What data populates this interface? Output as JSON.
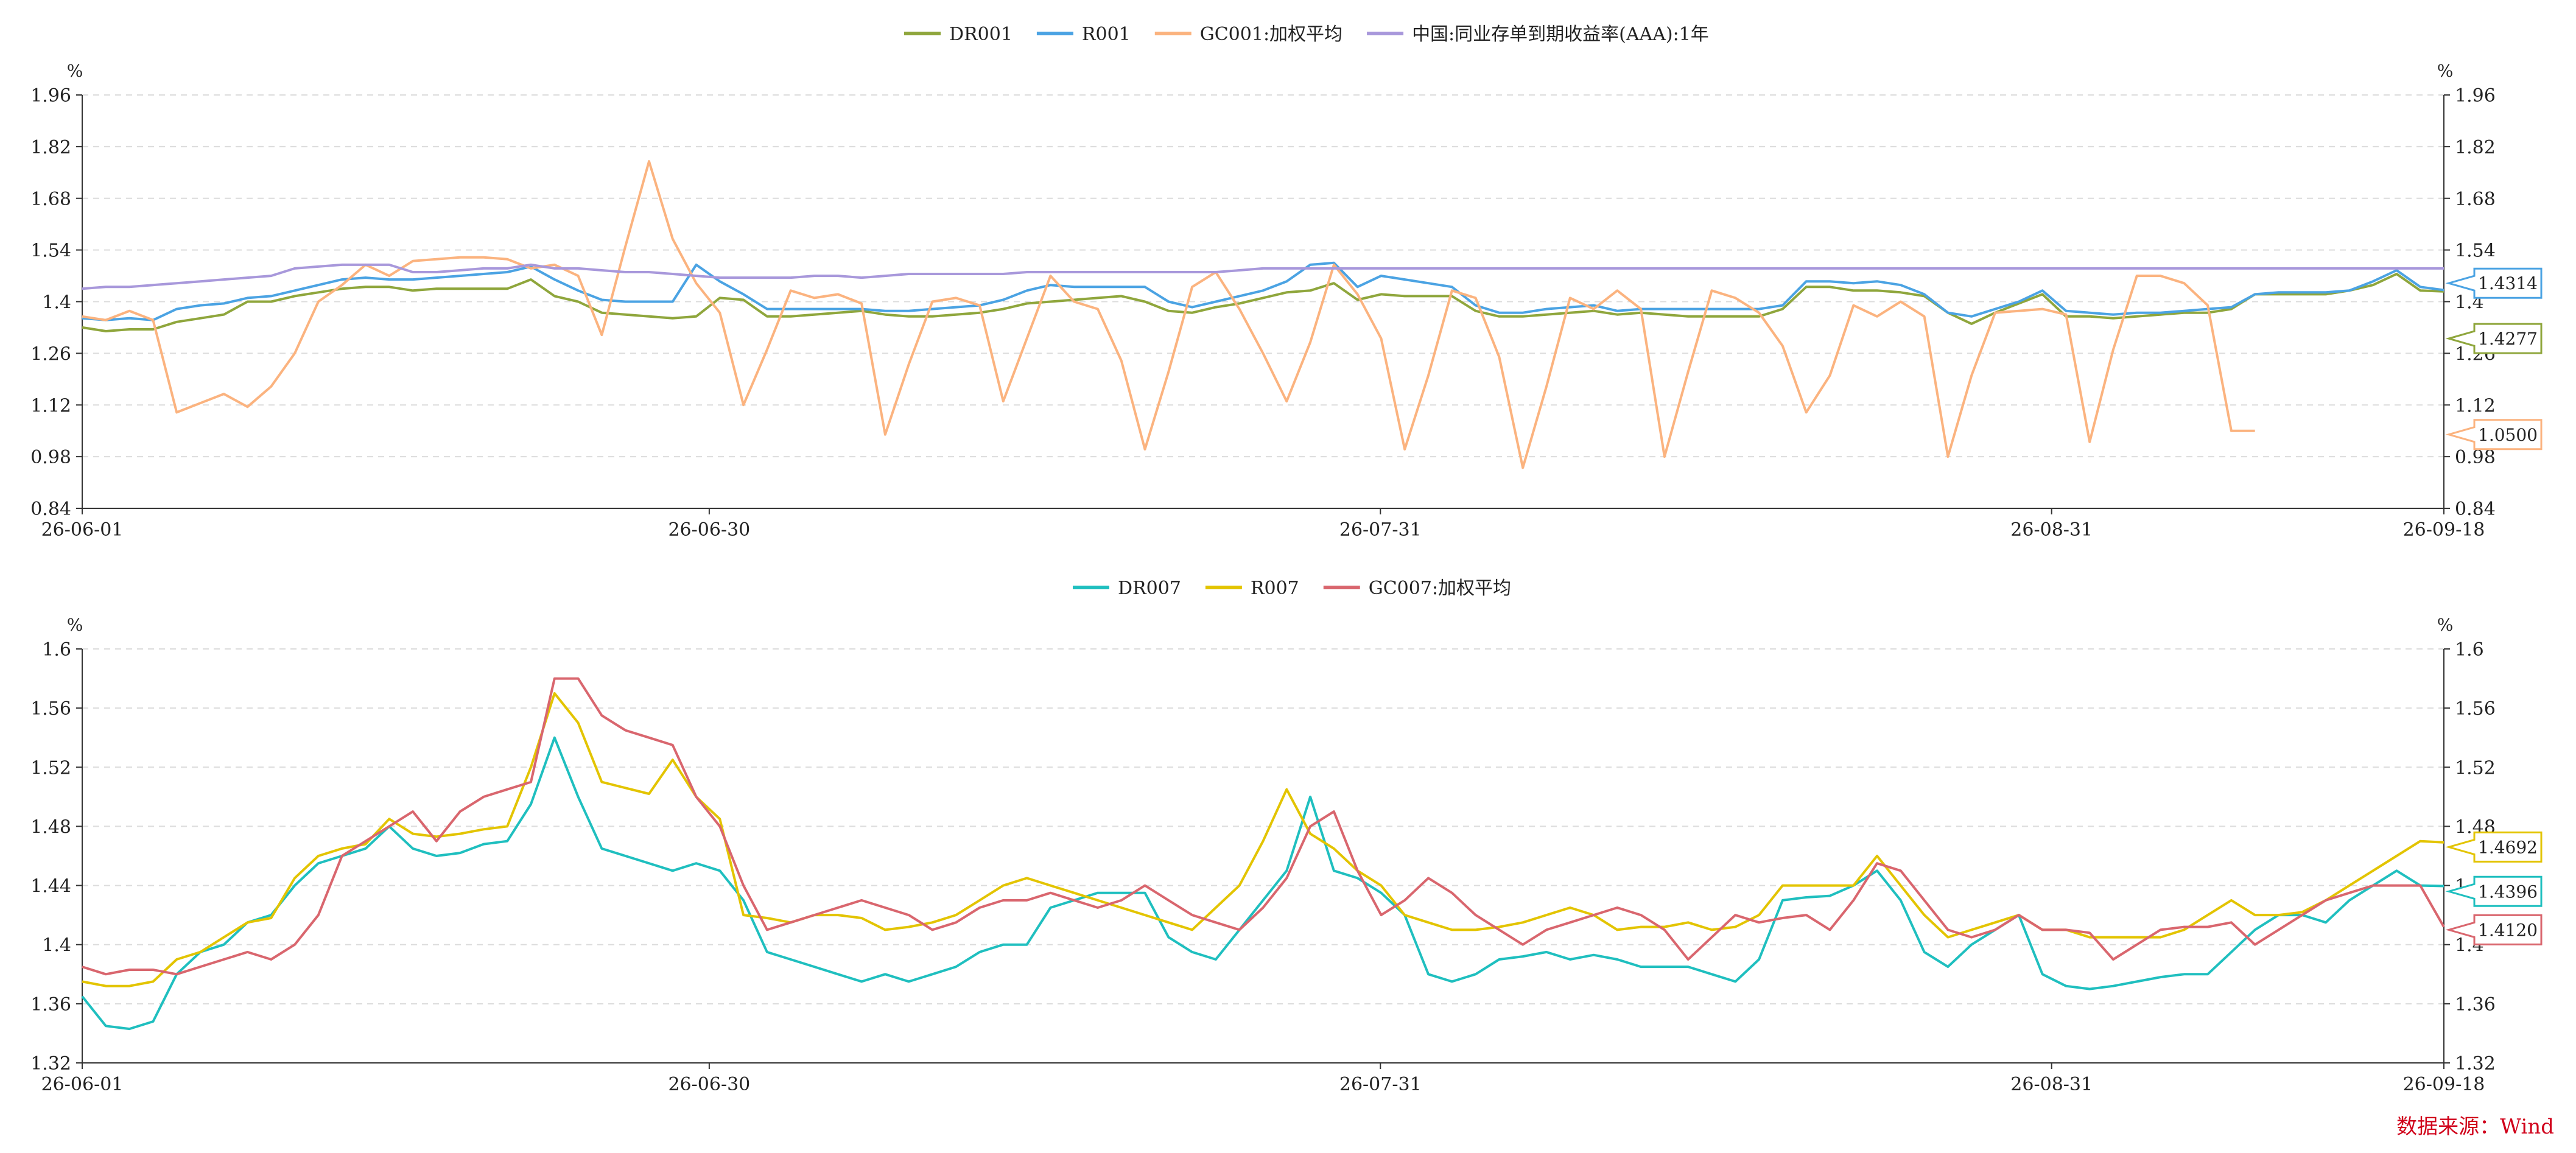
{
  "source": "数据来源：Wind",
  "charts": [
    {
      "type": "line",
      "y_unit_left": "%",
      "y_unit_right": "%",
      "ylim": [
        0.84,
        1.96
      ],
      "yticks": [
        "0.84",
        "0.98",
        "1.12",
        "1.26",
        "1.4",
        "1.54",
        "1.68",
        "1.82",
        "1.96"
      ],
      "xticks": [
        "26-06-01",
        "26-06-30",
        "26-07-31",
        "26-08-31",
        "26-09-18"
      ],
      "grid": true,
      "legend": "top-center",
      "series": [
        {
          "name": "DR001",
          "color": "#8fa63c",
          "end_label": "1.4277",
          "values": [
            1.33,
            1.32,
            1.325,
            1.325,
            1.345,
            1.355,
            1.365,
            1.4,
            1.4,
            1.415,
            1.425,
            1.435,
            1.44,
            1.44,
            1.43,
            1.435,
            1.435,
            1.435,
            1.435,
            1.46,
            1.415,
            1.4,
            1.37,
            1.365,
            1.36,
            1.355,
            1.36,
            1.41,
            1.405,
            1.36,
            1.36,
            1.365,
            1.37,
            1.375,
            1.365,
            1.36,
            1.36,
            1.365,
            1.37,
            1.38,
            1.395,
            1.4,
            1.405,
            1.41,
            1.415,
            1.4,
            1.375,
            1.37,
            1.385,
            1.395,
            1.41,
            1.425,
            1.43,
            1.45,
            1.405,
            1.42,
            1.415,
            1.415,
            1.415,
            1.375,
            1.36,
            1.36,
            1.365,
            1.37,
            1.375,
            1.365,
            1.37,
            1.365,
            1.36,
            1.36,
            1.36,
            1.36,
            1.38,
            1.44,
            1.44,
            1.43,
            1.43,
            1.425,
            1.415,
            1.37,
            1.34,
            1.37,
            1.395,
            1.42,
            1.36,
            1.36,
            1.355,
            1.36,
            1.365,
            1.37,
            1.37,
            1.38,
            1.42,
            1.42,
            1.42,
            1.42,
            1.43,
            1.445,
            1.475,
            1.43,
            1.4277
          ]
        },
        {
          "name": "R001",
          "color": "#4ba3e3",
          "end_label": "1.4314",
          "values": [
            1.355,
            1.35,
            1.355,
            1.35,
            1.38,
            1.39,
            1.395,
            1.41,
            1.415,
            1.43,
            1.445,
            1.46,
            1.465,
            1.46,
            1.46,
            1.465,
            1.47,
            1.475,
            1.48,
            1.495,
            1.46,
            1.43,
            1.405,
            1.4,
            1.4,
            1.4,
            1.5,
            1.455,
            1.42,
            1.38,
            1.38,
            1.38,
            1.38,
            1.38,
            1.375,
            1.375,
            1.38,
            1.385,
            1.39,
            1.405,
            1.43,
            1.445,
            1.44,
            1.44,
            1.44,
            1.44,
            1.4,
            1.385,
            1.4,
            1.415,
            1.43,
            1.455,
            1.5,
            1.505,
            1.44,
            1.47,
            1.46,
            1.45,
            1.44,
            1.39,
            1.37,
            1.37,
            1.38,
            1.385,
            1.39,
            1.375,
            1.38,
            1.38,
            1.38,
            1.38,
            1.38,
            1.38,
            1.39,
            1.455,
            1.455,
            1.45,
            1.455,
            1.445,
            1.42,
            1.37,
            1.36,
            1.38,
            1.4,
            1.43,
            1.375,
            1.37,
            1.365,
            1.37,
            1.37,
            1.375,
            1.38,
            1.385,
            1.42,
            1.425,
            1.425,
            1.425,
            1.43,
            1.455,
            1.485,
            1.44,
            1.4314
          ]
        },
        {
          "name": "GC001:加权平均",
          "color": "#fbb37f",
          "end_label": "1.0500",
          "values": [
            1.36,
            1.35,
            1.375,
            1.35,
            1.1,
            1.125,
            1.15,
            1.115,
            1.17,
            1.26,
            1.4,
            1.445,
            1.5,
            1.47,
            1.51,
            1.515,
            1.52,
            1.52,
            1.515,
            1.49,
            1.5,
            1.47,
            1.31,
            1.55,
            1.78,
            1.57,
            1.45,
            1.37,
            1.12,
            1.27,
            1.43,
            1.41,
            1.42,
            1.395,
            1.04,
            1.23,
            1.4,
            1.41,
            1.39,
            1.13,
            1.3,
            1.47,
            1.4,
            1.38,
            1.24,
            1.0,
            1.21,
            1.44,
            1.48,
            1.38,
            1.26,
            1.13,
            1.29,
            1.5,
            1.42,
            1.3,
            1.0,
            1.2,
            1.43,
            1.41,
            1.25,
            0.95,
            1.17,
            1.41,
            1.38,
            1.43,
            1.38,
            0.98,
            1.21,
            1.43,
            1.41,
            1.37,
            1.28,
            1.1,
            1.2,
            1.39,
            1.36,
            1.4,
            1.36,
            0.98,
            1.2,
            1.37,
            1.375,
            1.38,
            1.365,
            1.02,
            1.27,
            1.47,
            1.47,
            1.45,
            1.39,
            1.05,
            1.05
          ]
        },
        {
          "name": "中国:同业存单到期收益率(AAA):1年",
          "color": "#a898db",
          "end_label": "",
          "values": [
            1.435,
            1.44,
            1.44,
            1.445,
            1.45,
            1.455,
            1.46,
            1.465,
            1.47,
            1.49,
            1.495,
            1.5,
            1.5,
            1.5,
            1.48,
            1.48,
            1.485,
            1.49,
            1.49,
            1.5,
            1.49,
            1.49,
            1.485,
            1.48,
            1.48,
            1.475,
            1.47,
            1.465,
            1.465,
            1.465,
            1.465,
            1.47,
            1.47,
            1.465,
            1.47,
            1.475,
            1.475,
            1.475,
            1.475,
            1.475,
            1.48,
            1.48,
            1.48,
            1.48,
            1.48,
            1.48,
            1.48,
            1.48,
            1.48,
            1.485,
            1.49,
            1.49,
            1.49,
            1.49,
            1.49,
            1.49,
            1.49,
            1.49,
            1.49,
            1.49,
            1.49,
            1.49,
            1.49,
            1.49,
            1.49,
            1.49,
            1.49,
            1.49,
            1.49,
            1.49,
            1.49,
            1.49,
            1.49,
            1.49,
            1.49,
            1.49,
            1.49,
            1.49,
            1.49,
            1.49,
            1.49,
            1.49,
            1.49,
            1.49,
            1.49,
            1.49,
            1.49,
            1.49,
            1.49,
            1.49,
            1.49,
            1.49,
            1.49,
            1.49,
            1.49,
            1.49,
            1.49,
            1.49,
            1.49,
            1.49,
            1.49
          ]
        }
      ]
    },
    {
      "type": "line",
      "y_unit_left": "%",
      "y_unit_right": "%",
      "ylim": [
        1.32,
        1.6
      ],
      "yticks": [
        "1.32",
        "1.36",
        "1.4",
        "1.44",
        "1.48",
        "1.52",
        "1.56",
        "1.6"
      ],
      "xticks": [
        "26-06-01",
        "26-06-30",
        "26-07-31",
        "26-08-31",
        "26-09-18"
      ],
      "grid": true,
      "legend": "top-center",
      "series": [
        {
          "name": "DR007",
          "color": "#1fbfbf",
          "end_label": "1.4396",
          "values": [
            1.365,
            1.345,
            1.343,
            1.348,
            1.38,
            1.395,
            1.4,
            1.415,
            1.42,
            1.44,
            1.455,
            1.46,
            1.465,
            1.48,
            1.465,
            1.46,
            1.462,
            1.468,
            1.47,
            1.495,
            1.54,
            1.5,
            1.465,
            1.46,
            1.455,
            1.45,
            1.455,
            1.45,
            1.43,
            1.395,
            1.39,
            1.385,
            1.38,
            1.375,
            1.38,
            1.375,
            1.38,
            1.385,
            1.395,
            1.4,
            1.4,
            1.425,
            1.43,
            1.435,
            1.435,
            1.435,
            1.405,
            1.395,
            1.39,
            1.41,
            1.43,
            1.45,
            1.5,
            1.45,
            1.445,
            1.435,
            1.42,
            1.38,
            1.375,
            1.38,
            1.39,
            1.392,
            1.395,
            1.39,
            1.393,
            1.39,
            1.385,
            1.385,
            1.385,
            1.38,
            1.375,
            1.39,
            1.43,
            1.432,
            1.433,
            1.44,
            1.45,
            1.43,
            1.395,
            1.385,
            1.4,
            1.41,
            1.42,
            1.38,
            1.372,
            1.37,
            1.372,
            1.375,
            1.378,
            1.38,
            1.38,
            1.395,
            1.41,
            1.42,
            1.42,
            1.415,
            1.43,
            1.44,
            1.45,
            1.44,
            1.4396
          ]
        },
        {
          "name": "R007",
          "color": "#e3c400",
          "end_label": "1.4692",
          "values": [
            1.375,
            1.372,
            1.372,
            1.375,
            1.39,
            1.395,
            1.405,
            1.415,
            1.418,
            1.445,
            1.46,
            1.465,
            1.468,
            1.485,
            1.475,
            1.473,
            1.475,
            1.478,
            1.48,
            1.52,
            1.57,
            1.55,
            1.51,
            1.506,
            1.502,
            1.525,
            1.5,
            1.485,
            1.42,
            1.418,
            1.415,
            1.42,
            1.42,
            1.418,
            1.41,
            1.412,
            1.415,
            1.42,
            1.43,
            1.44,
            1.445,
            1.44,
            1.435,
            1.43,
            1.425,
            1.42,
            1.415,
            1.41,
            1.425,
            1.44,
            1.47,
            1.505,
            1.475,
            1.465,
            1.45,
            1.44,
            1.42,
            1.415,
            1.41,
            1.41,
            1.412,
            1.415,
            1.42,
            1.425,
            1.42,
            1.41,
            1.412,
            1.412,
            1.415,
            1.41,
            1.412,
            1.42,
            1.44,
            1.44,
            1.44,
            1.44,
            1.46,
            1.44,
            1.42,
            1.405,
            1.41,
            1.415,
            1.42,
            1.41,
            1.41,
            1.405,
            1.405,
            1.405,
            1.405,
            1.41,
            1.42,
            1.43,
            1.42,
            1.42,
            1.422,
            1.43,
            1.44,
            1.45,
            1.46,
            1.47,
            1.4692
          ]
        },
        {
          "name": "GC007:加权平均",
          "color": "#d9666e",
          "end_label": "1.4120",
          "values": [
            1.385,
            1.38,
            1.383,
            1.383,
            1.38,
            1.385,
            1.39,
            1.395,
            1.39,
            1.4,
            1.42,
            1.46,
            1.47,
            1.48,
            1.49,
            1.47,
            1.49,
            1.5,
            1.505,
            1.51,
            1.58,
            1.58,
            1.555,
            1.545,
            1.54,
            1.535,
            1.5,
            1.48,
            1.44,
            1.41,
            1.415,
            1.42,
            1.425,
            1.43,
            1.425,
            1.42,
            1.41,
            1.415,
            1.425,
            1.43,
            1.43,
            1.435,
            1.43,
            1.425,
            1.43,
            1.44,
            1.43,
            1.42,
            1.415,
            1.41,
            1.425,
            1.445,
            1.48,
            1.49,
            1.45,
            1.42,
            1.43,
            1.445,
            1.435,
            1.42,
            1.41,
            1.4,
            1.41,
            1.415,
            1.42,
            1.425,
            1.42,
            1.41,
            1.39,
            1.405,
            1.42,
            1.415,
            1.418,
            1.42,
            1.41,
            1.43,
            1.455,
            1.45,
            1.43,
            1.41,
            1.405,
            1.41,
            1.42,
            1.41,
            1.41,
            1.408,
            1.39,
            1.4,
            1.41,
            1.412,
            1.412,
            1.415,
            1.4,
            1.41,
            1.42,
            1.43,
            1.435,
            1.44,
            1.44,
            1.44,
            1.412
          ]
        }
      ]
    }
  ]
}
